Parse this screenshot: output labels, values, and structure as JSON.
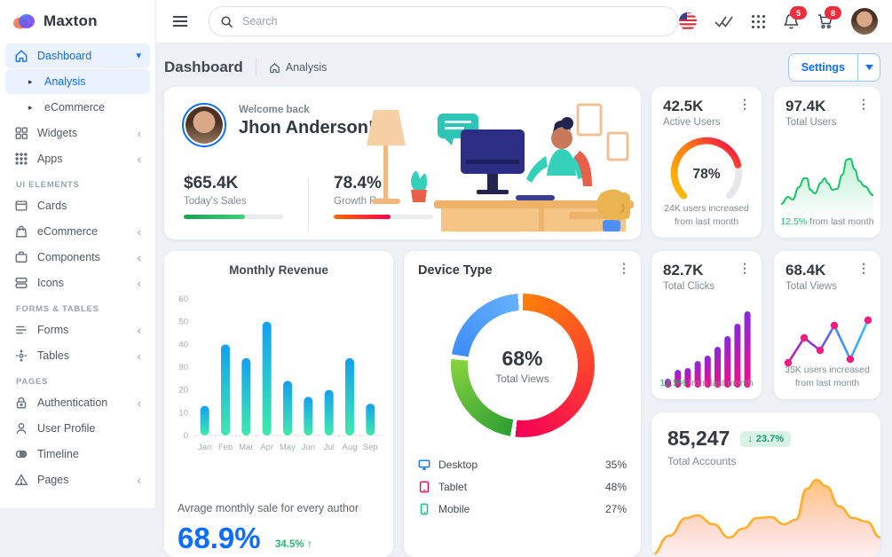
{
  "brand": {
    "logo_text": "Maxton"
  },
  "sidebar": {
    "dashboard": "Dashboard",
    "analysis": "Analysis",
    "ecommerce_sub": "eCommerce",
    "widgets": "Widgets",
    "apps": "Apps",
    "section_ui": "UI ELEMENTS",
    "cards": "Cards",
    "ecommerce": "eCommerce",
    "components": "Components",
    "icons": "Icons",
    "section_forms": "FORMS & TABLES",
    "forms": "Forms",
    "tables": "Tables",
    "section_pages": "PAGES",
    "authentication": "Authentication",
    "user_profile": "User Profile",
    "timeline": "Timeline",
    "pages": "Pages"
  },
  "topbar": {
    "search_placeholder": "Search",
    "bell_badge": "5",
    "cart_badge": "8"
  },
  "page_head": {
    "title": "Dashboard",
    "crumb": "Analysis",
    "settings_label": "Settings"
  },
  "welcome": {
    "greeting": "Welcome back",
    "name": "Jhon Anderson!",
    "sales_value": "$65.4K",
    "sales_label": "Today's Sales",
    "sales_pct": 62,
    "growth_value": "78.4%",
    "growth_label": "Growth Rate",
    "growth_pct": 57
  },
  "active_users": {
    "value": "42.5K",
    "label": "Active Users",
    "footer": "24K users increased from last month"
  },
  "total_users": {
    "value": "97.4K",
    "label": "Total Users",
    "delta": "12.5%",
    "footer": "from last month"
  },
  "monthly_revenue": {
    "title": "Monthly Revenue",
    "subtitle": "Avrage monthly sale for every author",
    "big_value": "68.9%",
    "delta": "34.5%",
    "delta_arrow": "↑"
  },
  "device_type": {
    "title": "Device Type",
    "center_value": "68%",
    "center_label": "Total Views",
    "legend": [
      {
        "label": "Desktop",
        "value": "35%"
      },
      {
        "label": "Tablet",
        "value": "48%"
      },
      {
        "label": "Mobile",
        "value": "27%"
      }
    ]
  },
  "total_clicks": {
    "value": "82.7K",
    "label": "Total Clicks",
    "delta": "12.5%",
    "footer": "from last month"
  },
  "total_views": {
    "value": "68.4K",
    "label": "Total Views",
    "footer": "35K users increased from last month"
  },
  "total_accounts": {
    "value": "85,247",
    "badge": "23.7%",
    "badge_arrow": "↓",
    "label": "Total Accounts"
  },
  "chart_data": {
    "monthly_revenue": {
      "type": "bar",
      "categories": [
        "Jan",
        "Feb",
        "Mar",
        "Apr",
        "May",
        "Jun",
        "Jul",
        "Aug",
        "Sep"
      ],
      "values": [
        13,
        40,
        34,
        50,
        24,
        17,
        20,
        34,
        14
      ],
      "yticks": [
        0,
        10,
        20,
        30,
        40,
        50,
        60
      ],
      "ymax": 60,
      "bar_gradient": [
        "#14a0f0",
        "#3fe9ad"
      ],
      "axis_color": "#a6adb4"
    },
    "active_users_gauge": {
      "type": "gauge",
      "value": 78,
      "label": "78%",
      "colors": [
        "#ffc107",
        "#fd7e14",
        "#f5004e"
      ],
      "track": "#e6e7ea"
    },
    "total_users_spark": {
      "type": "area",
      "color": "#17c666",
      "points": [
        [
          0,
          70
        ],
        [
          8,
          62
        ],
        [
          13,
          65
        ],
        [
          20,
          51
        ],
        [
          26,
          41
        ],
        [
          29,
          41
        ],
        [
          33,
          54
        ],
        [
          38,
          58
        ],
        [
          45,
          46
        ],
        [
          49,
          41
        ],
        [
          53,
          47
        ],
        [
          58,
          54
        ],
        [
          63,
          53
        ],
        [
          69,
          37
        ],
        [
          74,
          20
        ],
        [
          78,
          19
        ],
        [
          83,
          31
        ],
        [
          88,
          44
        ],
        [
          94,
          50
        ],
        [
          104,
          60
        ]
      ]
    },
    "total_clicks_bars": {
      "type": "bar",
      "values": [
        10,
        20,
        22,
        30,
        36,
        46,
        58,
        72,
        86
      ],
      "gradient": [
        "#8729e0",
        "#f50b86"
      ]
    },
    "total_views_line": {
      "type": "line",
      "dot_color": "#f41d7f",
      "line_gradient": [
        "#c22aa0",
        "#7b3fe4",
        "#3e8ef7",
        "#35c3f3"
      ],
      "points": [
        [
          8,
          64
        ],
        [
          26,
          36
        ],
        [
          44,
          50
        ],
        [
          60,
          22
        ],
        [
          78,
          60
        ],
        [
          98,
          16
        ]
      ]
    },
    "total_accounts_area": {
      "type": "area",
      "line_color": "#ffb02e",
      "fill_top": "rgba(255,170,60,0.7)",
      "fill_bottom": "rgba(255,140,150,0.12)",
      "points": [
        [
          0,
          100
        ],
        [
          18,
          78
        ],
        [
          35,
          58
        ],
        [
          46,
          55
        ],
        [
          62,
          65
        ],
        [
          78,
          80
        ],
        [
          92,
          70
        ],
        [
          106,
          58
        ],
        [
          120,
          57
        ],
        [
          133,
          65
        ],
        [
          145,
          60
        ],
        [
          156,
          25
        ],
        [
          166,
          15
        ],
        [
          175,
          22
        ],
        [
          189,
          45
        ],
        [
          202,
          58
        ],
        [
          216,
          62
        ],
        [
          230,
          80
        ]
      ]
    },
    "device_type_donut": {
      "type": "pie",
      "center_value": "68%",
      "center_label": "Total Views",
      "segments": [
        {
          "label": "Tablet",
          "from": 0,
          "to": 186,
          "stops": [
            "#ff8008",
            "#f50057"
          ]
        },
        {
          "label": "Mobile",
          "from": 190,
          "to": 275,
          "stops": [
            "#2f9e32",
            "#86d33f"
          ]
        },
        {
          "label": "Desktop",
          "from": 279,
          "to": 356,
          "stops": [
            "#3e8ef7",
            "#64b0ff"
          ]
        }
      ]
    }
  },
  "colors": {
    "primary": "#0d6efd",
    "success": "#1fbb72",
    "danger": "#ec2d3e",
    "desktop": "#0d6efd",
    "tablet": "#f5004e",
    "mobile": "#02c27a"
  }
}
